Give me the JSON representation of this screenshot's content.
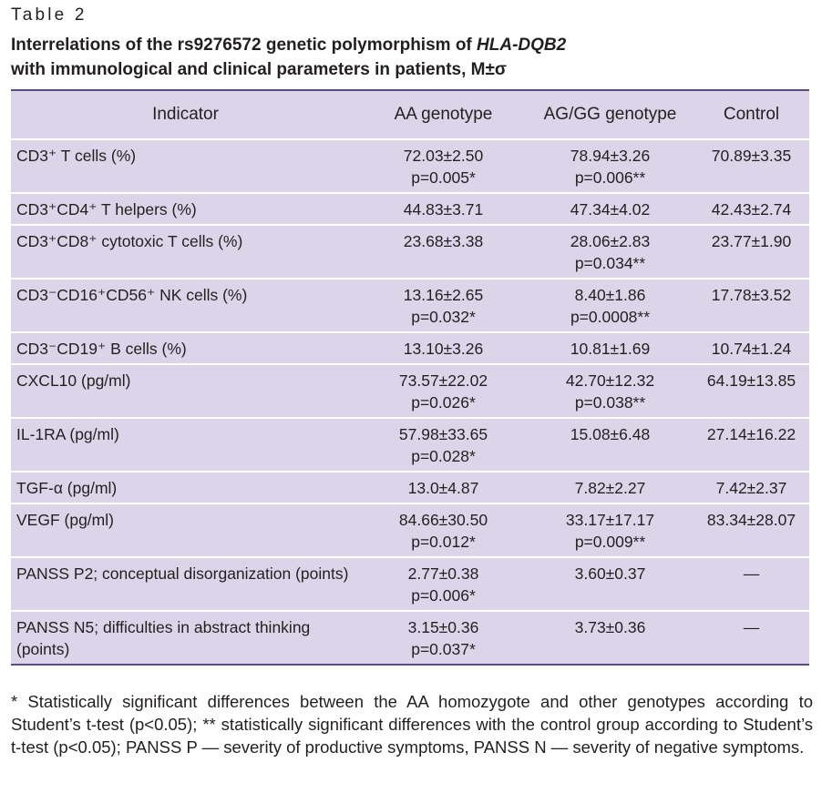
{
  "caption": {
    "label": "Table 2",
    "title_pre": "Interrelations of the rs9276572 genetic polymorphism of ",
    "title_gene": "HLA-DQB2",
    "title_post": "with immunological and clinical parameters in patients, M±σ"
  },
  "table": {
    "headers": [
      "Indicator",
      "AA genotype",
      "AG/GG genotype",
      "Control"
    ],
    "rows": [
      {
        "indicator": "CD3⁺ T cells (%)",
        "aa": [
          "72.03±2.50",
          "p=0.005*"
        ],
        "ag": [
          "78.94±3.26",
          "p=0.006**"
        ],
        "control": "70.89±3.35"
      },
      {
        "indicator": "CD3⁺CD4⁺ T helpers (%)",
        "aa": [
          "44.83±3.71"
        ],
        "ag": [
          "47.34±4.02"
        ],
        "control": "42.43±2.74"
      },
      {
        "indicator": "CD3⁺CD8⁺ cytotoxic T cells (%)",
        "aa": [
          "23.68±3.38"
        ],
        "ag": [
          "28.06±2.83",
          "p=0.034**"
        ],
        "control": "23.77±1.90"
      },
      {
        "indicator": "CD3⁻CD16⁺CD56⁺ NK cells (%)",
        "aa": [
          "13.16±2.65",
          "p=0.032*"
        ],
        "ag": [
          "8.40±1.86",
          "p=0.0008**"
        ],
        "control": "17.78±3.52"
      },
      {
        "indicator": "CD3⁻CD19⁺ B cells (%)",
        "aa": [
          "13.10±3.26"
        ],
        "ag": [
          "10.81±1.69"
        ],
        "control": "10.74±1.24"
      },
      {
        "indicator": "CXCL10 (pg/ml)",
        "aa": [
          "73.57±22.02",
          "p=0.026*"
        ],
        "ag": [
          "42.70±12.32",
          "p=0.038**"
        ],
        "control": "64.19±13.85"
      },
      {
        "indicator": "IL-1RA (pg/ml)",
        "aa": [
          "57.98±33.65",
          "p=0.028*"
        ],
        "ag": [
          "15.08±6.48"
        ],
        "control": "27.14±16.22"
      },
      {
        "indicator": "TGF-α (pg/ml)",
        "aa": [
          "13.0±4.87"
        ],
        "ag": [
          "7.82±2.27"
        ],
        "control": "7.42±2.37"
      },
      {
        "indicator": "VEGF (pg/ml)",
        "aa": [
          "84.66±30.50",
          "p=0.012*"
        ],
        "ag": [
          "33.17±17.17",
          "p=0.009**"
        ],
        "control": "83.34±28.07"
      },
      {
        "indicator": "PANSS P2; conceptual disorganization (points)",
        "aa": [
          "2.77±0.38",
          "p=0.006*"
        ],
        "ag": [
          "3.60±0.37"
        ],
        "control": "—"
      },
      {
        "indicator": "PANSS N5; difficulties in abstract thinking (points)",
        "aa": [
          "3.15±0.36",
          "p=0.037*"
        ],
        "ag": [
          "3.73±0.36"
        ],
        "control": "—"
      }
    ]
  },
  "footnote": "* Statistically significant differences between the AA homozygote and other genotypes according to Student’s t-test (p<0.05); ** statistically significant differences with the control group according to Student’s t-test (p<0.05); PANSS P — severity of productive symptoms, PANSS N — severity of negative symptoms."
}
